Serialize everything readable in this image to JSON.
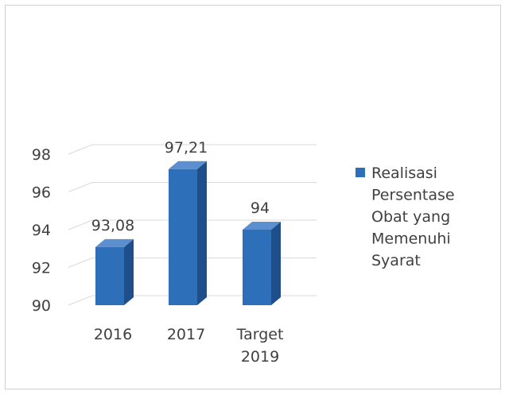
{
  "chart_data": {
    "type": "bar",
    "categories": [
      [
        "2016"
      ],
      [
        "2017"
      ],
      [
        "Target",
        "2019"
      ]
    ],
    "series": [
      {
        "name": "Realisasi Persentase Obat yang Memenuhi Syarat",
        "values": [
          93.08,
          97.21,
          94
        ],
        "data_labels": [
          "93,08",
          "97,21",
          "94"
        ]
      }
    ],
    "legend_lines": [
      "Realisasi",
      "Persentase",
      "Obat yang",
      "Memenuhi",
      "Syarat"
    ],
    "ylim": [
      90,
      98
    ],
    "yticks": [
      "90",
      "92",
      "94",
      "96",
      "98"
    ],
    "ytick_values": [
      90,
      92,
      94,
      96,
      98
    ],
    "grid": true,
    "style": "3d-column",
    "legend_position": "right",
    "colors": {
      "bar_front": "#2e6fba",
      "bar_side": "#1e4f8a",
      "bar_top": "#5b8fd0",
      "grid": "#d9d9d9",
      "text": "#404040"
    }
  }
}
